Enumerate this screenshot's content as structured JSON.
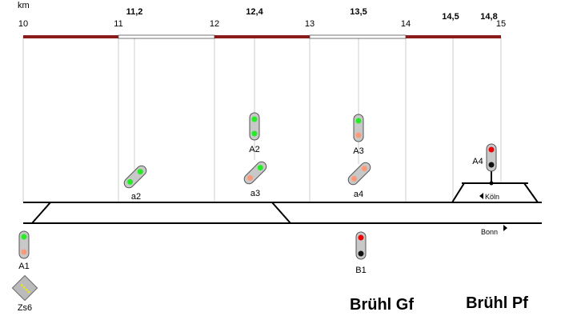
{
  "axis": {
    "unit": "km",
    "ticks": [
      "10",
      "11",
      "12",
      "13",
      "14",
      "15"
    ],
    "marks": [
      "11,2",
      "12,4",
      "13,5",
      "14,5",
      "14,8"
    ]
  },
  "signals": {
    "A1": "A1",
    "A2": "A2",
    "A3": "A3",
    "A4": "A4",
    "B1": "B1",
    "a2": "a2",
    "a3": "a3",
    "a4": "a4",
    "Zs6": "Zs6"
  },
  "directions": {
    "koeln": "Köln",
    "bonn": "Bonn"
  },
  "stations": {
    "gf": "Brühl Gf",
    "pf": "Brühl Pf"
  }
}
